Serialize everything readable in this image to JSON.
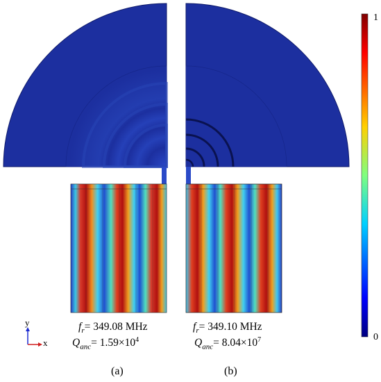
{
  "panels": [
    {
      "label": "(a)",
      "fr_symbol": "f",
      "fr_sub": "r",
      "fr_value": "= 349.08 MHz",
      "q_symbol": "Q",
      "q_sub": "anc",
      "q_value": "= 1.59×10",
      "q_exp": "4"
    },
    {
      "label": "(b)",
      "fr_symbol": "f",
      "fr_sub": "r",
      "fr_value": "= 349.10 MHz",
      "q_symbol": "Q",
      "q_sub": "anc",
      "q_value": "= 8.04×10",
      "q_exp": "7"
    }
  ],
  "colorbar": {
    "max_label": "1",
    "min_label": "0"
  },
  "axes": {
    "x": "x",
    "y": "y"
  },
  "colors": {
    "background_field": "#1c2f9f",
    "colorbar_top": "#800000",
    "colorbar_bottom": "#00008b"
  }
}
